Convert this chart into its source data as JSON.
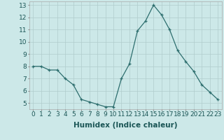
{
  "x": [
    0,
    1,
    2,
    3,
    4,
    5,
    6,
    7,
    8,
    9,
    10,
    11,
    12,
    13,
    14,
    15,
    16,
    17,
    18,
    19,
    20,
    21,
    22,
    23
  ],
  "y": [
    8.0,
    8.0,
    7.7,
    7.7,
    7.0,
    6.5,
    5.3,
    5.1,
    4.9,
    4.7,
    4.7,
    7.0,
    8.2,
    10.9,
    11.7,
    13.0,
    12.2,
    11.0,
    9.3,
    8.4,
    7.6,
    6.5,
    5.9,
    5.3
  ],
  "line_color": "#2d6e6e",
  "marker": "+",
  "marker_color": "#2d6e6e",
  "bg_color": "#cce8e8",
  "grid_color": "#b0cccc",
  "xlabel": "Humidex (Indice chaleur)",
  "xlim_min": -0.5,
  "xlim_max": 23.5,
  "ylim_min": 4.5,
  "ylim_max": 13.3,
  "yticks": [
    5,
    6,
    7,
    8,
    9,
    10,
    11,
    12,
    13
  ],
  "xticks": [
    0,
    1,
    2,
    3,
    4,
    5,
    6,
    7,
    8,
    9,
    10,
    11,
    12,
    13,
    14,
    15,
    16,
    17,
    18,
    19,
    20,
    21,
    22,
    23
  ],
  "xlabel_fontsize": 7.5,
  "tick_fontsize": 6.5
}
